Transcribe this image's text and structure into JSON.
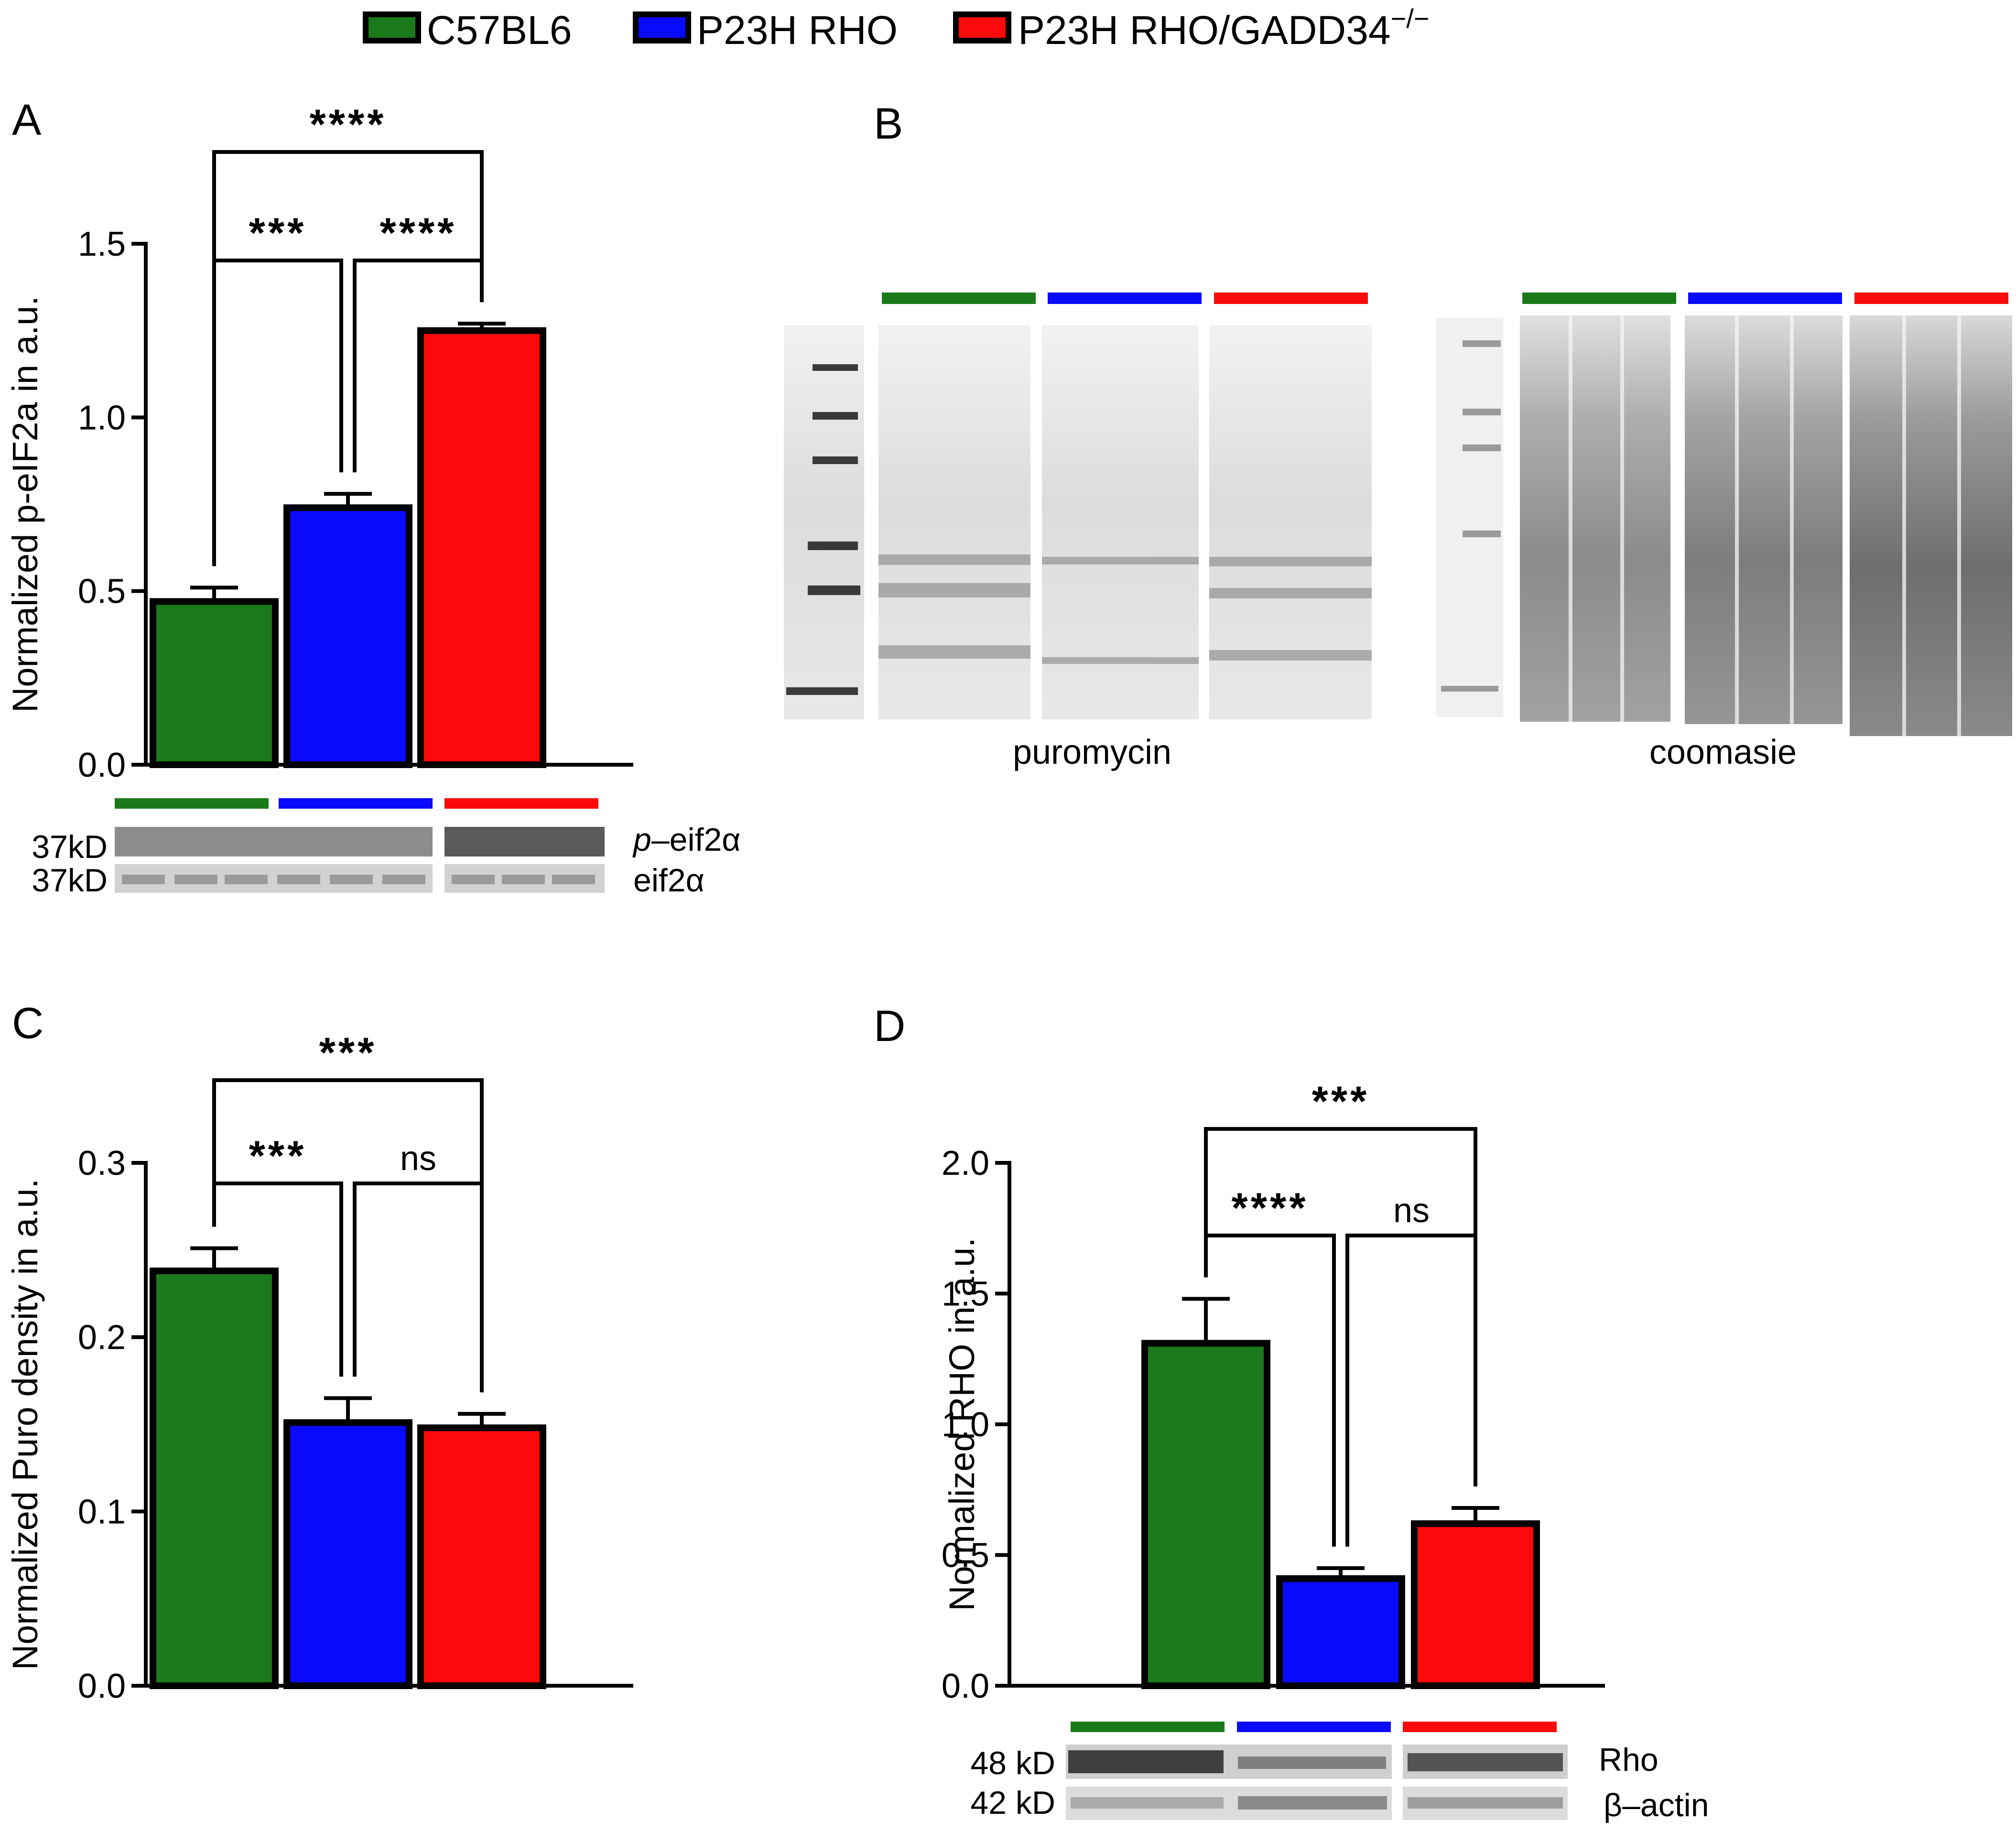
{
  "legend": {
    "items": [
      {
        "label": "C57BL6",
        "color": "#1a7a1a"
      },
      {
        "label": "P23H RHO",
        "color": "#0a0afa"
      },
      {
        "label": "P23H RHO/GADD34",
        "superscript": "−/−",
        "color": "#fa0a0a"
      }
    ]
  },
  "groups": [
    "C57BL6",
    "P23H RHO",
    "P23H RHO/GADD34−/−"
  ],
  "colors": [
    "#1a7a1a",
    "#0a0afa",
    "#fa0a0a"
  ],
  "panels": {
    "A": {
      "letter": "A"
    },
    "B": {
      "letter": "B",
      "left_caption": "puromycin",
      "right_caption": "coomasie"
    },
    "C": {
      "letter": "C"
    },
    "D": {
      "letter": "D"
    }
  },
  "chart_data": [
    {
      "id": "A",
      "type": "bar",
      "categories": [
        "C57BL6",
        "P23H RHO",
        "P23H RHO/GADD34−/−"
      ],
      "values": [
        0.47,
        0.74,
        1.25
      ],
      "errors": [
        0.04,
        0.04,
        0.02
      ],
      "ylabel": "Normalized p-eIF2a in a.u.",
      "ylim": [
        0,
        1.5
      ],
      "ticks": [
        0.0,
        0.5,
        1.0,
        1.5
      ],
      "tick_labels": [
        "0.0",
        "0.5",
        "1.0",
        "1.5"
      ],
      "significance": [
        {
          "from": 0,
          "to": 2,
          "label": "****"
        },
        {
          "from": 0,
          "to": 1,
          "label": "***"
        },
        {
          "from": 1,
          "to": 2,
          "label": "****"
        }
      ],
      "blot": {
        "rows": [
          {
            "kd": "37kD",
            "protein": "p–eif2α",
            "italic_prefix": "p",
            "protein_rest": "–eif2α"
          },
          {
            "kd": "37kD",
            "protein": "eif2α"
          }
        ]
      }
    },
    {
      "id": "C",
      "type": "bar",
      "categories": [
        "C57BL6",
        "P23H RHO",
        "P23H RHO/GADD34−/−"
      ],
      "values": [
        0.238,
        0.151,
        0.148
      ],
      "errors": [
        0.013,
        0.014,
        0.008
      ],
      "ylabel": "Normalized Puro density in a.u.",
      "ylim": [
        0,
        0.3
      ],
      "ticks": [
        0.0,
        0.1,
        0.2,
        0.3
      ],
      "tick_labels": [
        "0.0",
        "0.1",
        "0.2",
        "0.3"
      ],
      "significance": [
        {
          "from": 0,
          "to": 2,
          "label": "***"
        },
        {
          "from": 0,
          "to": 1,
          "label": "***"
        },
        {
          "from": 1,
          "to": 2,
          "label": "ns"
        }
      ]
    },
    {
      "id": "D",
      "type": "bar",
      "categories": [
        "C57BL6",
        "P23H RHO",
        "P23H RHO/GADD34−/−"
      ],
      "values": [
        1.31,
        0.41,
        0.62
      ],
      "errors": [
        0.17,
        0.04,
        0.06
      ],
      "ylabel": "Normalized RHO in a.u.",
      "ylim": [
        0,
        2.0
      ],
      "ticks": [
        0.0,
        0.5,
        1.0,
        1.5,
        2.0
      ],
      "tick_labels": [
        "0.0",
        "0.5",
        "1.0",
        "1.5",
        "2.0"
      ],
      "significance": [
        {
          "from": 0,
          "to": 2,
          "label": "***"
        },
        {
          "from": 0,
          "to": 1,
          "label": "****"
        },
        {
          "from": 1,
          "to": 2,
          "label": "ns"
        }
      ],
      "blot": {
        "rows": [
          {
            "kd": "48 kD",
            "protein": "Rho"
          },
          {
            "kd": "42 kD",
            "protein": "β–actin"
          }
        ]
      }
    }
  ]
}
